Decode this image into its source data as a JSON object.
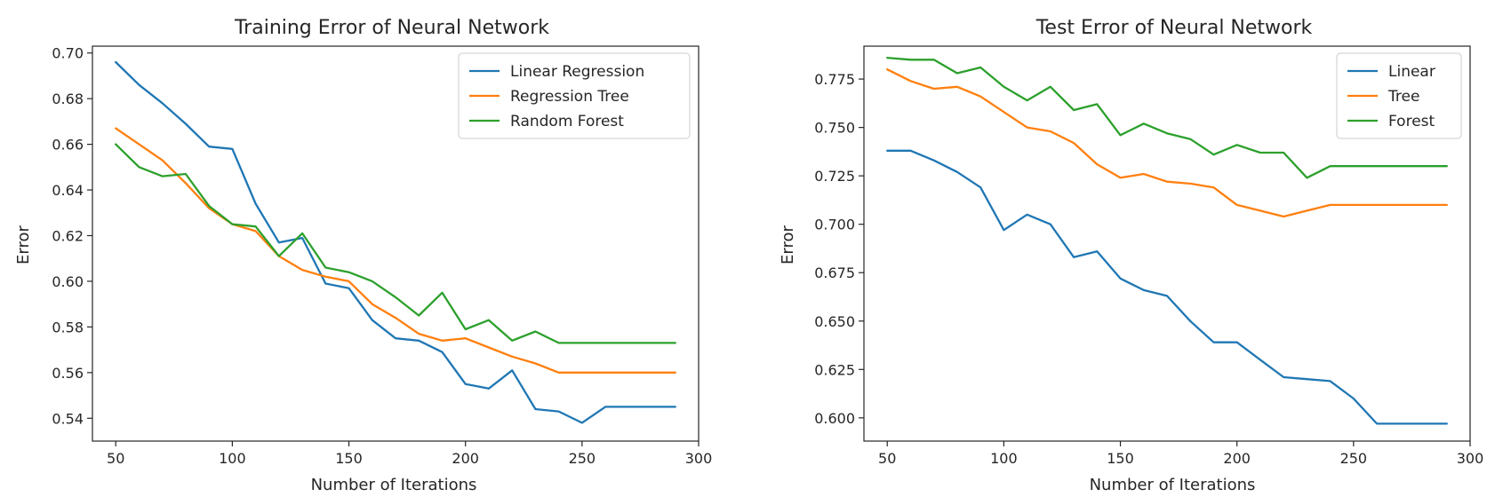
{
  "chart_data": [
    {
      "type": "line",
      "title": "Training Error of Neural Network",
      "xlabel": "Number of Iterations",
      "ylabel": "Error",
      "xlim": [
        40,
        300
      ],
      "ylim": [
        0.53,
        0.703
      ],
      "xticks": [
        50,
        100,
        150,
        200,
        250,
        300
      ],
      "yticks": [
        0.54,
        0.56,
        0.58,
        0.6,
        0.62,
        0.64,
        0.66,
        0.68,
        0.7
      ],
      "ytick_decimals": 2,
      "legend_position": "top-right",
      "grid": false,
      "x": [
        50,
        60,
        70,
        80,
        90,
        100,
        110,
        120,
        130,
        140,
        150,
        160,
        170,
        180,
        190,
        200,
        210,
        220,
        230,
        240,
        250,
        260,
        270,
        280,
        290
      ],
      "series": [
        {
          "name": "Linear Regression",
          "color": "#1f77b4",
          "values": [
            0.696,
            0.686,
            0.678,
            0.669,
            0.659,
            0.658,
            0.634,
            0.617,
            0.619,
            0.599,
            0.597,
            0.583,
            0.575,
            0.574,
            0.569,
            0.555,
            0.553,
            0.561,
            0.544,
            0.543,
            0.538,
            0.545,
            0.545,
            0.545,
            0.545
          ]
        },
        {
          "name": "Regression Tree",
          "color": "#ff7f0e",
          "values": [
            0.667,
            0.66,
            0.653,
            0.643,
            0.632,
            0.625,
            0.622,
            0.611,
            0.605,
            0.602,
            0.6,
            0.59,
            0.584,
            0.577,
            0.574,
            0.575,
            0.571,
            0.567,
            0.564,
            0.56,
            0.56,
            0.56,
            0.56,
            0.56,
            0.56
          ]
        },
        {
          "name": "Random Forest",
          "color": "#2ca02c",
          "values": [
            0.66,
            0.65,
            0.646,
            0.647,
            0.633,
            0.625,
            0.624,
            0.611,
            0.621,
            0.606,
            0.604,
            0.6,
            0.593,
            0.585,
            0.595,
            0.579,
            0.583,
            0.574,
            0.578,
            0.573,
            0.573,
            0.573,
            0.573,
            0.573,
            0.573
          ]
        }
      ]
    },
    {
      "type": "line",
      "title": "Test Error of Neural Network",
      "xlabel": "Number of Iterations",
      "ylabel": "Error",
      "xlim": [
        40,
        300
      ],
      "ylim": [
        0.588,
        0.792
      ],
      "xticks": [
        50,
        100,
        150,
        200,
        250,
        300
      ],
      "yticks": [
        0.6,
        0.625,
        0.65,
        0.675,
        0.7,
        0.725,
        0.75,
        0.775
      ],
      "ytick_decimals": 3,
      "legend_position": "top-right",
      "grid": false,
      "x": [
        50,
        60,
        70,
        80,
        90,
        100,
        110,
        120,
        130,
        140,
        150,
        160,
        170,
        180,
        190,
        200,
        210,
        220,
        230,
        240,
        250,
        260,
        270,
        280,
        290
      ],
      "series": [
        {
          "name": "Linear",
          "color": "#1f77b4",
          "values": [
            0.738,
            0.738,
            0.733,
            0.727,
            0.719,
            0.697,
            0.705,
            0.7,
            0.683,
            0.686,
            0.672,
            0.666,
            0.663,
            0.65,
            0.639,
            0.639,
            0.63,
            0.621,
            0.62,
            0.619,
            0.61,
            0.597,
            0.597,
            0.597,
            0.597
          ]
        },
        {
          "name": "Tree",
          "color": "#ff7f0e",
          "values": [
            0.78,
            0.774,
            0.77,
            0.771,
            0.766,
            0.758,
            0.75,
            0.748,
            0.742,
            0.731,
            0.724,
            0.726,
            0.722,
            0.721,
            0.719,
            0.71,
            0.707,
            0.704,
            0.707,
            0.71,
            0.71,
            0.71,
            0.71,
            0.71,
            0.71
          ]
        },
        {
          "name": "Forest",
          "color": "#2ca02c",
          "values": [
            0.786,
            0.785,
            0.785,
            0.778,
            0.781,
            0.771,
            0.764,
            0.771,
            0.759,
            0.762,
            0.746,
            0.752,
            0.747,
            0.744,
            0.736,
            0.741,
            0.737,
            0.737,
            0.724,
            0.73,
            0.73,
            0.73,
            0.73,
            0.73,
            0.73
          ]
        }
      ]
    }
  ]
}
